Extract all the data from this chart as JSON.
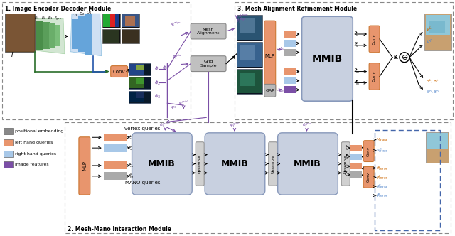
{
  "bg_color": "#ffffff",
  "module1_title": "1. Image Encoder-Decoder Module",
  "module2_title": "2. Mesh-Mano Interaction Module",
  "module3_title": "3. Mesh Alignment Refinement Module",
  "legend_items": [
    {
      "label": "positional embedding",
      "color": "#888888"
    },
    {
      "label": "left hand queries",
      "color": "#e8956d"
    },
    {
      "label": "right hand queries",
      "color": "#a8c8e8"
    },
    {
      "label": "image features",
      "color": "#7b4fa6"
    }
  ],
  "orange_color": "#e8956d",
  "blue_color": "#a8c8e8",
  "purple_color": "#7b4fa6",
  "gray_color": "#aaaaaa",
  "mmib_color": "#c8d0e0",
  "conv_color": "#e8956d",
  "green_enc_color": "#7ab87a",
  "blue_dec_color": "#7ab0d8",
  "dash_color": "#999999"
}
